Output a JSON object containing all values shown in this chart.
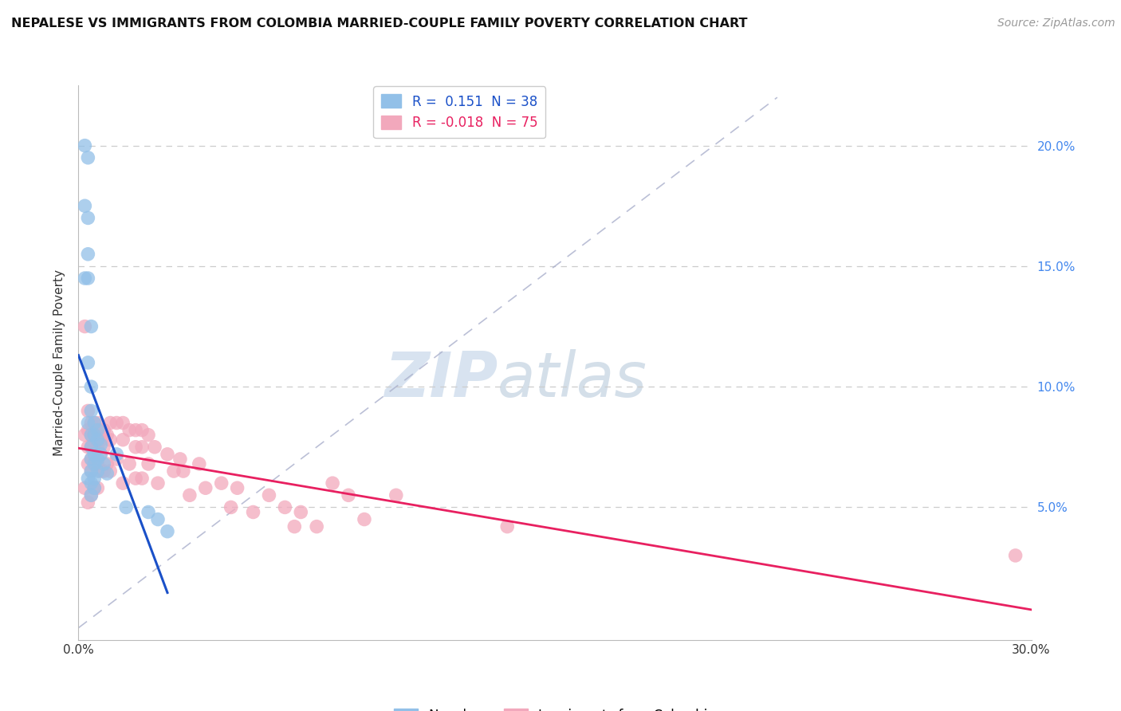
{
  "title": "NEPALESE VS IMMIGRANTS FROM COLOMBIA MARRIED-COUPLE FAMILY POVERTY CORRELATION CHART",
  "source": "Source: ZipAtlas.com",
  "ylabel": "Married-Couple Family Poverty",
  "xlim": [
    0.0,
    0.3
  ],
  "ylim": [
    -0.005,
    0.225
  ],
  "nepalese_R": 0.151,
  "nepalese_N": 38,
  "colombia_R": -0.018,
  "colombia_N": 75,
  "nepalese_color": "#92c0e8",
  "colombia_color": "#f2a8bc",
  "nepalese_line_color": "#1a50c8",
  "colombia_line_color": "#e82060",
  "diagonal_color": "#aab0cc",
  "watermark_zip": "ZIP",
  "watermark_atlas": "atlas",
  "nepalese_x": [
    0.002,
    0.002,
    0.002,
    0.003,
    0.003,
    0.003,
    0.003,
    0.003,
    0.003,
    0.003,
    0.004,
    0.004,
    0.004,
    0.004,
    0.004,
    0.004,
    0.004,
    0.004,
    0.004,
    0.005,
    0.005,
    0.005,
    0.005,
    0.005,
    0.005,
    0.006,
    0.006,
    0.006,
    0.006,
    0.007,
    0.007,
    0.008,
    0.009,
    0.012,
    0.015,
    0.022,
    0.025,
    0.028
  ],
  "nepalese_y": [
    0.2,
    0.175,
    0.145,
    0.195,
    0.17,
    0.155,
    0.145,
    0.11,
    0.085,
    0.062,
    0.125,
    0.1,
    0.09,
    0.08,
    0.075,
    0.07,
    0.065,
    0.06,
    0.055,
    0.085,
    0.08,
    0.072,
    0.068,
    0.062,
    0.058,
    0.082,
    0.078,
    0.07,
    0.065,
    0.076,
    0.072,
    0.068,
    0.064,
    0.072,
    0.05,
    0.048,
    0.045,
    0.04
  ],
  "colombia_x": [
    0.002,
    0.002,
    0.002,
    0.003,
    0.003,
    0.003,
    0.003,
    0.003,
    0.004,
    0.004,
    0.004,
    0.004,
    0.004,
    0.004,
    0.005,
    0.005,
    0.005,
    0.005,
    0.005,
    0.006,
    0.006,
    0.006,
    0.006,
    0.006,
    0.007,
    0.007,
    0.007,
    0.007,
    0.008,
    0.008,
    0.008,
    0.009,
    0.009,
    0.01,
    0.01,
    0.01,
    0.012,
    0.012,
    0.014,
    0.014,
    0.014,
    0.016,
    0.016,
    0.018,
    0.018,
    0.018,
    0.02,
    0.02,
    0.02,
    0.022,
    0.022,
    0.024,
    0.025,
    0.028,
    0.03,
    0.032,
    0.033,
    0.035,
    0.038,
    0.04,
    0.045,
    0.048,
    0.05,
    0.055,
    0.06,
    0.065,
    0.068,
    0.07,
    0.075,
    0.08,
    0.085,
    0.09,
    0.1,
    0.135,
    0.295
  ],
  "colombia_y": [
    0.125,
    0.08,
    0.058,
    0.09,
    0.082,
    0.075,
    0.068,
    0.052,
    0.085,
    0.08,
    0.075,
    0.07,
    0.065,
    0.055,
    0.085,
    0.08,
    0.075,
    0.068,
    0.058,
    0.085,
    0.08,
    0.075,
    0.068,
    0.058,
    0.082,
    0.078,
    0.072,
    0.065,
    0.082,
    0.075,
    0.065,
    0.08,
    0.068,
    0.085,
    0.078,
    0.065,
    0.085,
    0.07,
    0.085,
    0.078,
    0.06,
    0.082,
    0.068,
    0.082,
    0.075,
    0.062,
    0.082,
    0.075,
    0.062,
    0.08,
    0.068,
    0.075,
    0.06,
    0.072,
    0.065,
    0.07,
    0.065,
    0.055,
    0.068,
    0.058,
    0.06,
    0.05,
    0.058,
    0.048,
    0.055,
    0.05,
    0.042,
    0.048,
    0.042,
    0.06,
    0.055,
    0.045,
    0.055,
    0.042,
    0.03
  ]
}
